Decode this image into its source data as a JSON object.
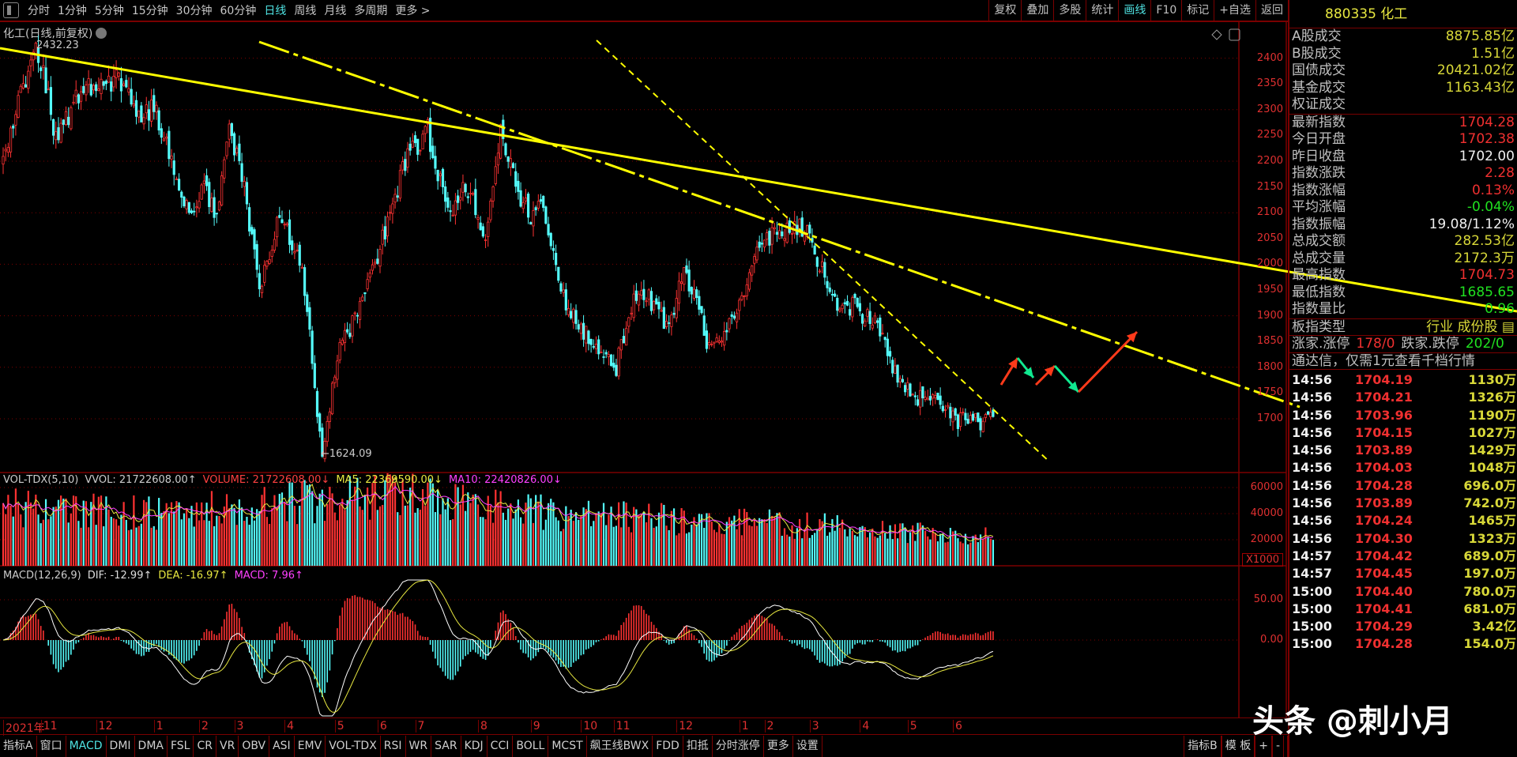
{
  "toolbar": {
    "periods": [
      "分时",
      "1分钟",
      "5分钟",
      "15分钟",
      "30分钟",
      "60分钟",
      "日线",
      "周线",
      "月线",
      "多周期",
      "更多 >"
    ],
    "active_period": 6,
    "buttons": [
      "复权",
      "叠加",
      "多股",
      "统计",
      "画线",
      "F10",
      "标记",
      "+自选",
      "返回"
    ],
    "active_button": 4
  },
  "chart_title": "化工(日线,前复权)",
  "vol_header": [
    "VOL-TDX(5,10)",
    "VVOL: 21722608.00↑",
    "VOLUME: 21722608.00↓",
    "MA5: 22369590.00↓",
    "MA10: 22420826.00↓"
  ],
  "macd_header": [
    "MACD(12,26,9)",
    "DIF: -12.99↑",
    "DEA: -16.97↑",
    "MACD: 7.96↑"
  ],
  "vol_unit": "X1000",
  "colors": {
    "up": "#ff3232",
    "down": "#54fcfc",
    "trend": "#ffff00",
    "arrow_up": "#ff3a1a",
    "arrow_down": "#10e890",
    "grid": "#7a0000"
  },
  "chart_data": {
    "type": "candlestick",
    "num_days": 395,
    "price_path": [
      [
        0,
        2200
      ],
      [
        5,
        2300
      ],
      [
        13,
        2432
      ],
      [
        21,
        2250
      ],
      [
        29,
        2320
      ],
      [
        37,
        2350
      ],
      [
        46,
        2360
      ],
      [
        54,
        2280
      ],
      [
        60,
        2300
      ],
      [
        67,
        2200
      ],
      [
        75,
        2080
      ],
      [
        79,
        2150
      ],
      [
        85,
        2100
      ],
      [
        90,
        2270
      ],
      [
        96,
        2150
      ],
      [
        102,
        1950
      ],
      [
        110,
        2100
      ],
      [
        119,
        2000
      ],
      [
        127,
        1624
      ],
      [
        133,
        1820
      ],
      [
        140,
        1900
      ],
      [
        148,
        2000
      ],
      [
        154,
        2100
      ],
      [
        160,
        2200
      ],
      [
        169,
        2260
      ],
      [
        177,
        2100
      ],
      [
        185,
        2150
      ],
      [
        192,
        2050
      ],
      [
        198,
        2260
      ],
      [
        204,
        2150
      ],
      [
        210,
        2090
      ],
      [
        215,
        2130
      ],
      [
        221,
        1950
      ],
      [
        231,
        1870
      ],
      [
        238,
        1820
      ],
      [
        244,
        1800
      ],
      [
        250,
        1920
      ],
      [
        256,
        1940
      ],
      [
        265,
        1880
      ],
      [
        271,
        1990
      ],
      [
        277,
        1910
      ],
      [
        281,
        1830
      ],
      [
        287,
        1870
      ],
      [
        294,
        1940
      ],
      [
        302,
        2050
      ],
      [
        312,
        2070
      ],
      [
        319,
        2070
      ],
      [
        325,
        2000
      ],
      [
        331,
        1920
      ],
      [
        338,
        1920
      ],
      [
        348,
        1880
      ],
      [
        352,
        1830
      ],
      [
        358,
        1760
      ],
      [
        365,
        1740
      ],
      [
        373,
        1740
      ],
      [
        379,
        1690
      ],
      [
        385,
        1710
      ],
      [
        390,
        1690
      ],
      [
        394,
        1704.28
      ]
    ],
    "volume_path": [
      [
        0,
        45000
      ],
      [
        60,
        40000
      ],
      [
        127,
        50000
      ],
      [
        160,
        55000
      ],
      [
        200,
        42000
      ],
      [
        300,
        33000
      ],
      [
        394,
        22000
      ]
    ],
    "high_label": "2432.23",
    "low_label": "←1624.09",
    "price_ticks": [
      2400,
      2350,
      2300,
      2250,
      2200,
      2150,
      2100,
      2050,
      2000,
      1950,
      1900,
      1850,
      1800,
      1750,
      1700
    ],
    "volume_ticks": [
      60000,
      40000,
      20000
    ],
    "macd_ticks": [
      "50.00",
      "0.00"
    ],
    "date_labels": [
      [
        "2021年",
        0
      ],
      [
        "11",
        15
      ],
      [
        "12",
        37
      ],
      [
        "1",
        60
      ],
      [
        "2",
        78
      ],
      [
        "3",
        92
      ],
      [
        "4",
        112
      ],
      [
        "5",
        132
      ],
      [
        "6",
        149
      ],
      [
        "7",
        164
      ],
      [
        "8",
        189
      ],
      [
        "9",
        210
      ],
      [
        "10",
        230
      ],
      [
        "11",
        243
      ],
      [
        "12",
        268
      ],
      [
        "1",
        293
      ],
      [
        "2",
        303
      ],
      [
        "3",
        321
      ],
      [
        "4",
        341
      ],
      [
        "5",
        360
      ],
      [
        "6",
        378
      ]
    ]
  },
  "panel": {
    "header": "880335 化工",
    "sec1": [
      [
        "A股成交",
        "8875.85亿",
        "y"
      ],
      [
        "B股成交",
        "1.51亿",
        "y"
      ],
      [
        "国债成交",
        "20421.02亿",
        "y"
      ],
      [
        "基金成交",
        "1163.43亿",
        "y"
      ],
      [
        "权证成交",
        "",
        ""
      ]
    ],
    "sec2": [
      [
        "最新指数",
        "1704.28",
        "r"
      ],
      [
        "今日开盘",
        "1702.38",
        "r"
      ],
      [
        "昨日收盘",
        "1702.00",
        "w"
      ],
      [
        "指数涨跌",
        "2.28",
        "r"
      ],
      [
        "指数涨幅",
        "0.13%",
        "r"
      ],
      [
        "平均涨幅",
        "-0.04%",
        "g"
      ],
      [
        "指数振幅",
        "19.08/1.12%",
        "w"
      ],
      [
        "总成交额",
        "282.53亿",
        "y"
      ],
      [
        "总成交量",
        "2172.3万",
        "y"
      ],
      [
        "最高指数",
        "1704.73",
        "r"
      ],
      [
        "最低指数",
        "1685.65",
        "g"
      ],
      [
        "指数量比",
        "0.96",
        "g"
      ]
    ],
    "type_label": "板指类型",
    "type_value": "行业 成份股",
    "up_label": "涨家.涨停",
    "up_value": "178/0",
    "down_label": "跌家.跌停",
    "down_value": "202/0",
    "promo": "通达信，仅需1元查看千档行情",
    "ticks": [
      [
        "14:56",
        "1704.19",
        "1130万"
      ],
      [
        "14:56",
        "1704.21",
        "1326万"
      ],
      [
        "14:56",
        "1703.96",
        "1190万"
      ],
      [
        "14:56",
        "1704.15",
        "1027万"
      ],
      [
        "14:56",
        "1703.89",
        "1429万"
      ],
      [
        "14:56",
        "1704.03",
        "1048万"
      ],
      [
        "14:56",
        "1704.28",
        "696.0万"
      ],
      [
        "14:56",
        "1703.89",
        "742.0万"
      ],
      [
        "14:56",
        "1704.24",
        "1465万"
      ],
      [
        "14:56",
        "1704.30",
        "1323万"
      ],
      [
        "14:57",
        "1704.42",
        "689.0万"
      ],
      [
        "14:57",
        "1704.45",
        "197.0万"
      ],
      [
        "15:00",
        "1704.40",
        "780.0万"
      ],
      [
        "15:00",
        "1704.41",
        "681.0万"
      ],
      [
        "15:00",
        "1704.29",
        "3.42亿"
      ],
      [
        "15:00",
        "1704.28",
        "154.0万"
      ]
    ]
  },
  "bottom_tabs": [
    "指标A",
    "窗口",
    "MACD",
    "DMI",
    "DMA",
    "FSL",
    "CR",
    "VR",
    "OBV",
    "ASI",
    "EMV",
    "VOL-TDX",
    "RSI",
    "WR",
    "SAR",
    "KDJ",
    "CCI",
    "BOLL",
    "MCST",
    "飙王线BWX",
    "FDD",
    "扣抵",
    "分时涨停",
    "更多",
    "设置"
  ],
  "active_tab": 2,
  "bottom_right": [
    "指标B",
    "模 板",
    "+",
    "-"
  ],
  "watermark": "头条 @刺小月"
}
